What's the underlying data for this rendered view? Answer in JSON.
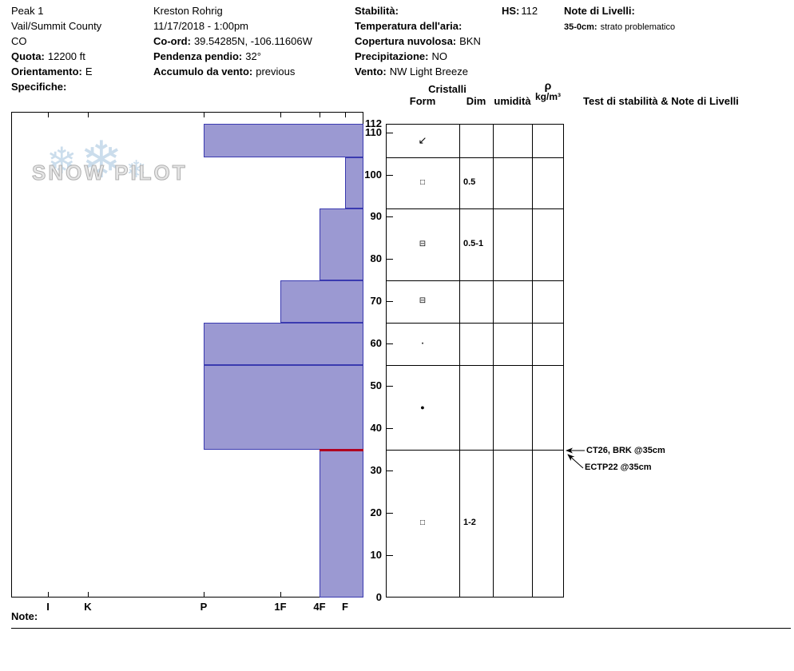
{
  "header": {
    "c1": {
      "l1": "Peak 1",
      "l2": "Vail/Summit County",
      "l3": "CO",
      "l4b": "Quota:",
      "l4": "12200 ft",
      "l5b": "Orientamento:",
      "l5": "E",
      "l6b": "Specifiche:"
    },
    "c2": {
      "l1": "Kreston Rohrig",
      "l2": "11/17/2018 - 1:00pm",
      "l3b": "Co-ord:",
      "l3": "39.54285N, -106.11606W",
      "l4b": "Pendenza pendio:",
      "l4": "32°",
      "l5b": "Accumulo da vento:",
      "l5": "previous"
    },
    "c3": {
      "l1b": "Stabilità:",
      "l2b": "Temperatura dell'aria:",
      "l3b": "Copertura nuvolosa:",
      "l3": "BKN",
      "l4b": "Precipitazione:",
      "l4": "NO",
      "l5b": "Vento:",
      "l5": "NW Light Breeze"
    },
    "hs_label": "HS:",
    "hs_value": "112",
    "notes_label": "Note di Livelli:",
    "note1b": "35-0cm:",
    "note1": "strato problematico"
  },
  "watermark": {
    "text": "SNOW PILOT",
    "flake": "❄"
  },
  "table": {
    "cristalli": "Cristalli",
    "form": "Form",
    "dim": "Dim",
    "umidita": "umidità",
    "rho": "ρ",
    "rho_unit": "kg/m³",
    "tests_header": "Test di stabilità & Note di Livelli"
  },
  "footer": {
    "note_label": "Note:"
  },
  "chart_data": {
    "type": "bar",
    "depth_axis": {
      "unit": "cm",
      "min": 0,
      "max": 112,
      "ticks": [
        112,
        110,
        100,
        90,
        80,
        70,
        60,
        50,
        40,
        30,
        20,
        10,
        0
      ]
    },
    "hardness_axis": {
      "ticks": [
        "I",
        "K",
        "P",
        "1F",
        "4F",
        "F"
      ]
    },
    "hs_total_cm": 112,
    "layers": [
      {
        "top_cm": 112,
        "bottom_cm": 104,
        "hardness": "P",
        "form_symbol": "↙",
        "form_name": "decomposing-fragments",
        "dim_mm": ""
      },
      {
        "top_cm": 104,
        "bottom_cm": 92,
        "hardness": "F",
        "form_symbol": "□",
        "form_name": "faceted-crystals",
        "dim_mm": "0.5"
      },
      {
        "top_cm": 92,
        "bottom_cm": 75,
        "hardness": "4F",
        "form_symbol": "⊟",
        "form_name": "mixed-faceted",
        "dim_mm": "0.5-1"
      },
      {
        "top_cm": 75,
        "bottom_cm": 65,
        "hardness": "1F",
        "form_symbol": "⊟",
        "form_name": "mixed-faceted",
        "dim_mm": ""
      },
      {
        "top_cm": 65,
        "bottom_cm": 55,
        "hardness": "P",
        "form_symbol": "·",
        "form_name": "rounded-grains-small",
        "dim_mm": ""
      },
      {
        "top_cm": 55,
        "bottom_cm": 35,
        "hardness": "P",
        "form_symbol": "●",
        "form_name": "rounded-grains",
        "dim_mm": ""
      },
      {
        "top_cm": 35,
        "bottom_cm": 0,
        "hardness": "4F",
        "form_symbol": "□",
        "form_name": "faceted-crystals",
        "dim_mm": "1-2",
        "problem_layer_boundary": true
      }
    ],
    "stability_tests": [
      {
        "label": "CT26, BRK @35cm",
        "depth_cm": 35
      },
      {
        "label": "ECTP22 @35cm",
        "depth_cm": 35
      }
    ],
    "colors": {
      "bar_fill": "#9b99d2",
      "bar_border": "#3a3ab0",
      "problem_line": "#b00020"
    }
  }
}
